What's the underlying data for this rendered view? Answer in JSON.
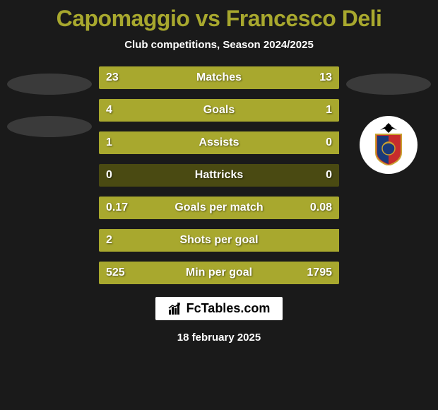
{
  "title": "Capomaggio vs Francesco Deli",
  "subtitle": "Club competitions, Season 2024/2025",
  "date": "18 february 2025",
  "brand": "FcTables.com",
  "colors": {
    "title": "#a8a82e",
    "text": "#ffffff",
    "subtext": "#ffffff",
    "background": "#1a1a1a",
    "bar_bg": "#4a4a12",
    "bar_left": "#a8a82e",
    "bar_right": "#a8a82e",
    "brand_bg": "#ffffff",
    "brand_text": "#000000",
    "placeholder": "#3a3a3a",
    "badge_bg": "#ffffff",
    "badge_red": "#c72c2c",
    "badge_blue": "#1a3a7a",
    "badge_black": "#000000",
    "badge_gold": "#c9a030"
  },
  "bars": [
    {
      "label": "Matches",
      "left": "23",
      "right": "13",
      "left_pct": 50,
      "right_pct": 50
    },
    {
      "label": "Goals",
      "left": "4",
      "right": "1",
      "left_pct": 80,
      "right_pct": 20
    },
    {
      "label": "Assists",
      "left": "1",
      "right": "0",
      "left_pct": 100,
      "right_pct": 0
    },
    {
      "label": "Hattricks",
      "left": "0",
      "right": "0",
      "left_pct": 0,
      "right_pct": 0
    },
    {
      "label": "Goals per match",
      "left": "0.17",
      "right": "0.08",
      "left_pct": 50,
      "right_pct": 50
    },
    {
      "label": "Shots per goal",
      "left": "2",
      "right": "",
      "left_pct": 100,
      "right_pct": 0
    },
    {
      "label": "Min per goal",
      "left": "525",
      "right": "1795",
      "left_pct": 50,
      "right_pct": 50
    }
  ]
}
